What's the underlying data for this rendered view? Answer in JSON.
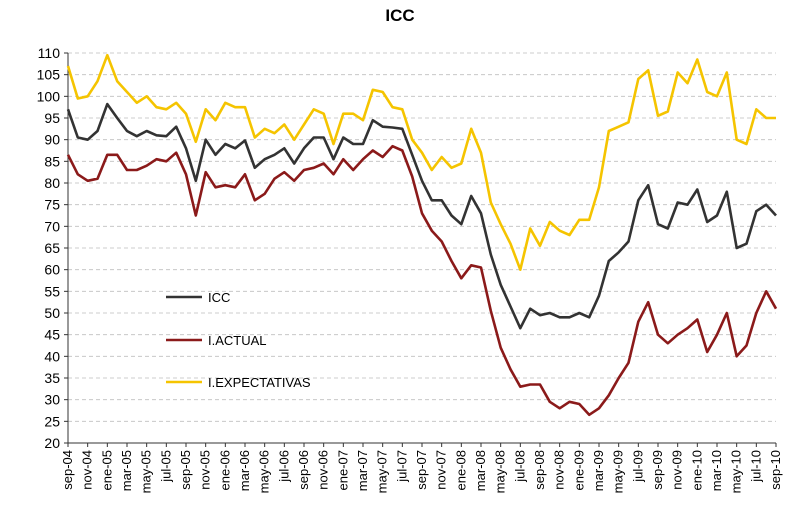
{
  "chart_data": {
    "type": "line",
    "title": "ICC",
    "xlabel": "",
    "ylabel": "",
    "ylim": [
      20,
      110
    ],
    "ytick_step": 5,
    "grid": true,
    "legend_position": "center-left",
    "tick_labels": [
      "sep-04",
      "nov-04",
      "ene-05",
      "mar-05",
      "may-05",
      "jul-05",
      "sep-05",
      "nov-05",
      "ene-06",
      "mar-06",
      "may-06",
      "jul-06",
      "sep-06",
      "nov-06",
      "ene-07",
      "mar-07",
      "may-07",
      "jul-07",
      "sep-07",
      "nov-07",
      "ene-08",
      "mar-08",
      "may-08",
      "jul-08",
      "sep-08",
      "nov-08",
      "ene-09",
      "mar-09",
      "may-09",
      "jul-09",
      "sep-09",
      "nov-09",
      "ene-10",
      "mar-10",
      "may-10",
      "jul-10",
      "sep-10"
    ],
    "series": [
      {
        "name": "ICC",
        "color": "#333333",
        "values": [
          97,
          90.5,
          90,
          92,
          98.2,
          95,
          92,
          90.8,
          92,
          91,
          90.8,
          93,
          88,
          80.5,
          90,
          86.5,
          89,
          88,
          89.8,
          83.5,
          85.5,
          86.5,
          88,
          84.5,
          88,
          90.5,
          90.5,
          85.5,
          90.5,
          89,
          89,
          94.5,
          93,
          92.8,
          92.5,
          86.5,
          80.5,
          76,
          76,
          72.5,
          70.5,
          77,
          73,
          63.5,
          56.5,
          51.5,
          46.5,
          51,
          49.5,
          50,
          49,
          49,
          50,
          49,
          54,
          62,
          64,
          66.5,
          76,
          79.5,
          70.5,
          69.5,
          75.5,
          75,
          78.5,
          71,
          72.5,
          78,
          65,
          66,
          73.5,
          75,
          72.5
        ]
      },
      {
        "name": "I.ACTUAL",
        "color": "#8b1a1a",
        "values": [
          86.5,
          82,
          80.5,
          81,
          86.5,
          86.5,
          83,
          83,
          84,
          85.5,
          85,
          87,
          82,
          72.5,
          82.5,
          79,
          79.5,
          79,
          82,
          76,
          77.5,
          81,
          82.5,
          80.5,
          83,
          83.5,
          84.5,
          82,
          85.5,
          83,
          85.5,
          87.5,
          86,
          88.5,
          87.5,
          81.5,
          73,
          69,
          66.5,
          62,
          58,
          61,
          60.5,
          50.5,
          42,
          37,
          33,
          33.5,
          33.5,
          29.5,
          28,
          29.5,
          29,
          26.5,
          28,
          31,
          35,
          38.5,
          48,
          52.5,
          45,
          43,
          45,
          46.5,
          48.5,
          41,
          45,
          50,
          40,
          42.5,
          50,
          55,
          51
        ]
      },
      {
        "name": "I.EXPECTATIVAS",
        "color": "#f5c400",
        "values": [
          107,
          99.5,
          100,
          103.5,
          109.5,
          103.5,
          101,
          98.5,
          100,
          97.5,
          97,
          98.5,
          96,
          89.5,
          97,
          94.5,
          98.5,
          97.5,
          97.5,
          90.5,
          92.5,
          91.5,
          93.5,
          90,
          93.5,
          97,
          96,
          89,
          96,
          96,
          94.5,
          101.5,
          101,
          97.5,
          97,
          90,
          87,
          83,
          86,
          83.5,
          84.5,
          92.5,
          87,
          75.5,
          70.5,
          66,
          60,
          69.5,
          65.5,
          71,
          69,
          68,
          71.5,
          71.5,
          79,
          92,
          93,
          94,
          104,
          106,
          95.5,
          96.5,
          105.5,
          103,
          108.5,
          101,
          100,
          105.5,
          90,
          89,
          97,
          95,
          95
        ]
      }
    ]
  }
}
